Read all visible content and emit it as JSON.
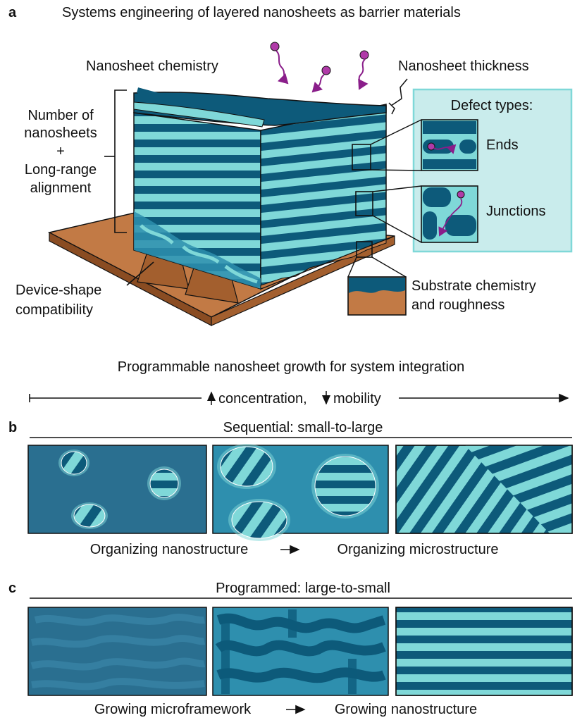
{
  "panel_a": {
    "letter": "a",
    "title": "Systems engineering of layered nanosheets as barrier materials",
    "nanosheet_chemistry": "Nanosheet chemistry",
    "nanosheet_thickness": "Nanosheet thickness",
    "number_label": [
      "Number of",
      "nanosheets",
      "+",
      "Long-range",
      "alignment"
    ],
    "device_shape": [
      "Device-shape",
      "compatibility"
    ],
    "defect_types": "Defect types:",
    "ends": "Ends",
    "junctions": "Junctions",
    "substrate": [
      "Substrate chemistry",
      "and roughness"
    ]
  },
  "middle": {
    "title": "Programmable nanosheet growth for system integration",
    "arrow_label_1": "concentration,",
    "arrow_label_2": "mobility"
  },
  "panel_b": {
    "letter": "b",
    "heading": "Sequential: small-to-large",
    "caption_left": "Organizing nanostructure",
    "caption_right": "Organizing microstructure"
  },
  "panel_c": {
    "letter": "c",
    "heading": "Programmed: large-to-small",
    "caption_left": "Growing microframework",
    "caption_right": "Growing nanostructure"
  },
  "colors": {
    "dark_teal": "#0d5a7a",
    "mid_teal": "#2e8fae",
    "light_cyan": "#7fd8d8",
    "substrate": "#c27a45",
    "box_bg": "#c9ecec"
  }
}
